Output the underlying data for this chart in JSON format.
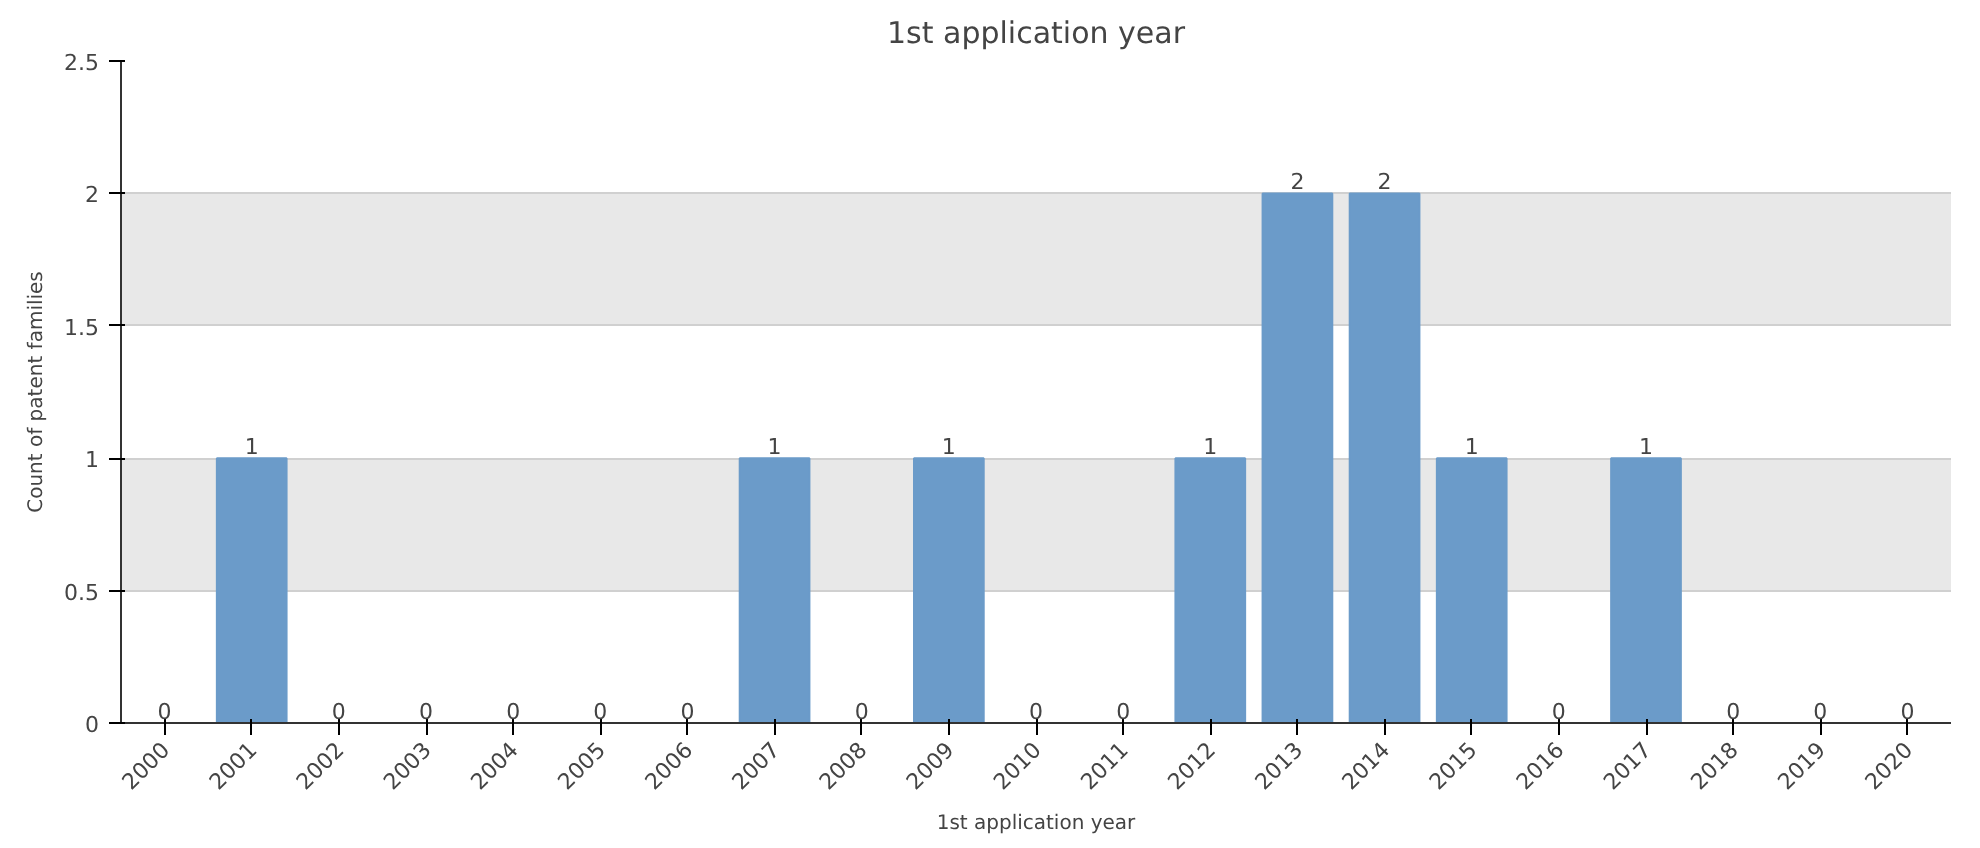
{
  "chart_data": {
    "type": "bar",
    "title": "1st application year",
    "xlabel": "1st application year",
    "ylabel": "Count of patent families",
    "categories": [
      "2000",
      "2001",
      "2002",
      "2003",
      "2004",
      "2005",
      "2006",
      "2007",
      "2008",
      "2009",
      "2010",
      "2011",
      "2012",
      "2013",
      "2014",
      "2015",
      "2016",
      "2017",
      "2018",
      "2019",
      "2020"
    ],
    "values": [
      0,
      1,
      0,
      0,
      0,
      0,
      0,
      1,
      0,
      1,
      0,
      0,
      1,
      2,
      2,
      1,
      0,
      1,
      0,
      0,
      0
    ],
    "color": "#6b9bc9",
    "ylim": [
      0,
      2.5
    ],
    "yticks": [
      0,
      0.5,
      1,
      1.5,
      2,
      2.5
    ],
    "grid": "y",
    "data_labels": true
  }
}
